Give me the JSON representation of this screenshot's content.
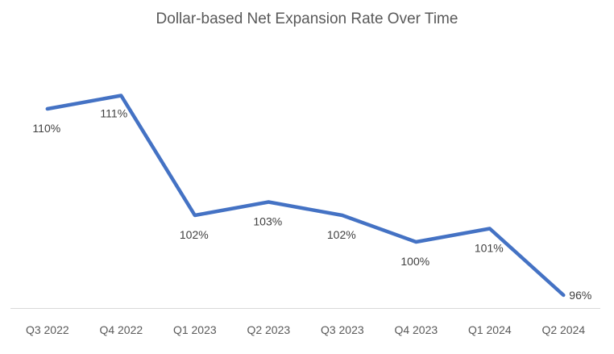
{
  "chart_data": {
    "type": "line",
    "title": "Dollar-based Net Expansion Rate Over Time",
    "categories": [
      "Q3 2022",
      "Q4 2022",
      "Q1 2023",
      "Q2 2023",
      "Q3 2023",
      "Q4 2023",
      "Q1 2024",
      "Q2 2024"
    ],
    "series": [
      {
        "name": "Dollar-based Net Expansion Rate",
        "values": [
          110,
          111,
          102,
          103,
          102,
          100,
          101,
          96
        ],
        "value_labels": [
          "110%",
          "111%",
          "102%",
          "103%",
          "102%",
          "100%",
          "101%",
          "96%"
        ],
        "color": "#4472C4"
      }
    ],
    "unit": "%",
    "xlabel": "",
    "ylabel": "",
    "y_axis_visible": false,
    "x_axis_line_visible": true,
    "grid": false,
    "legend": false,
    "ylim_estimate": [
      95,
      114
    ],
    "label_placement": [
      "below",
      "below-left",
      "below",
      "below",
      "below",
      "below",
      "below",
      "right"
    ],
    "colors": {
      "line": "#4472C4",
      "title_text": "#595959",
      "data_label_text": "#404040",
      "axis_label_text": "#595959",
      "axis_line": "#D9D9D9",
      "background": "#FFFFFF"
    }
  }
}
